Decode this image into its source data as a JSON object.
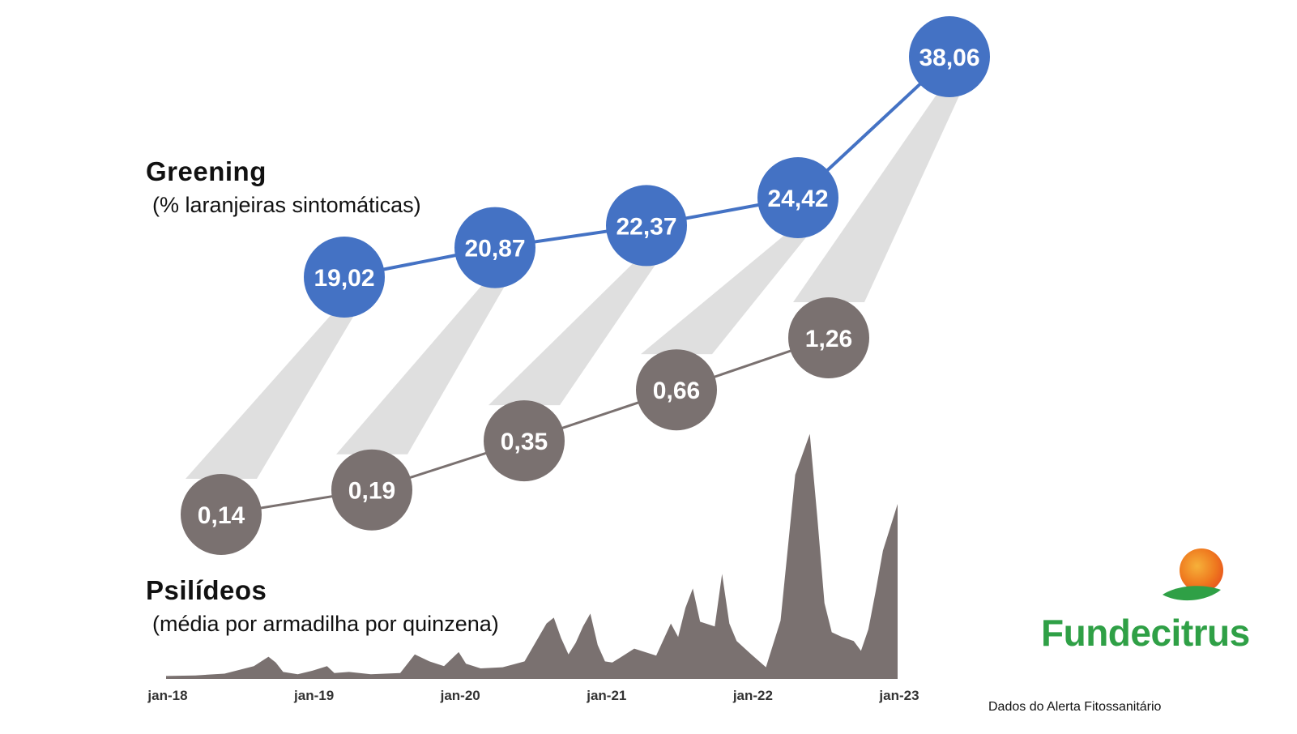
{
  "greening": {
    "title": "Greening",
    "subtitle": "(% laranjeiras sintomáticas)",
    "color": "#4472c4"
  },
  "psilideos": {
    "title": "Psilídeos",
    "subtitle": "(média por armadilha por quinzena)",
    "color": "#7a7170"
  },
  "source_note": "Dados do Alerta Fitossanitário",
  "logo": {
    "name": "Fundecitrus",
    "icon": "orange-leaf-icon"
  },
  "chart_data": [
    {
      "type": "line",
      "name": "greening",
      "categories": [
        "2018",
        "2019",
        "2020",
        "2021",
        "2022"
      ],
      "values": [
        19.02,
        20.87,
        22.37,
        24.42,
        38.06
      ],
      "labels": [
        "19,02",
        "20,87",
        "22,37",
        "24,42",
        "38,06"
      ],
      "color": "#4472c4"
    },
    {
      "type": "line",
      "name": "psilideos",
      "categories": [
        "2018",
        "2019",
        "2020",
        "2021",
        "2022"
      ],
      "values": [
        0.14,
        0.19,
        0.35,
        0.66,
        1.26
      ],
      "labels": [
        "0,14",
        "0,19",
        "0,35",
        "0,66",
        "1,26"
      ],
      "color": "#7a7170"
    },
    {
      "type": "area",
      "name": "psilideos-quinzenal",
      "x_tick_labels": [
        "jan-18",
        "jan-19",
        "jan-20",
        "jan-21",
        "jan-22",
        "jan-23"
      ],
      "xlim": [
        2018.0,
        2023.0
      ],
      "ylim": [
        0,
        5.0
      ],
      "x": [
        2018.0,
        2018.2,
        2018.4,
        2018.6,
        2018.7,
        2018.75,
        2018.8,
        2018.9,
        2019.0,
        2019.1,
        2019.15,
        2019.25,
        2019.4,
        2019.6,
        2019.7,
        2019.8,
        2019.9,
        2020.0,
        2020.05,
        2020.15,
        2020.3,
        2020.45,
        2020.6,
        2020.65,
        2020.7,
        2020.75,
        2020.8,
        2020.85,
        2020.9,
        2020.95,
        2021.0,
        2021.05,
        2021.1,
        2021.2,
        2021.35,
        2021.45,
        2021.5,
        2021.55,
        2021.6,
        2021.65,
        2021.75,
        2021.8,
        2021.85,
        2021.9,
        2022.0,
        2022.1,
        2022.2,
        2022.3,
        2022.4,
        2022.45,
        2022.5,
        2022.55,
        2022.62,
        2022.7,
        2022.75,
        2022.8,
        2022.85,
        2022.9,
        2022.95,
        2023.0
      ],
      "y": [
        0.05,
        0.06,
        0.09,
        0.22,
        0.38,
        0.28,
        0.12,
        0.08,
        0.14,
        0.22,
        0.1,
        0.12,
        0.08,
        0.1,
        0.42,
        0.3,
        0.22,
        0.46,
        0.26,
        0.18,
        0.2,
        0.3,
        0.95,
        1.05,
        0.7,
        0.42,
        0.62,
        0.9,
        1.12,
        0.58,
        0.3,
        0.28,
        0.36,
        0.52,
        0.4,
        0.95,
        0.72,
        1.22,
        1.55,
        0.98,
        0.9,
        1.8,
        0.95,
        0.65,
        0.42,
        0.2,
        1.0,
        3.5,
        4.2,
        2.8,
        1.3,
        0.8,
        0.72,
        0.65,
        0.48,
        0.85,
        1.5,
        2.2,
        2.6,
        3.0
      ]
    }
  ]
}
